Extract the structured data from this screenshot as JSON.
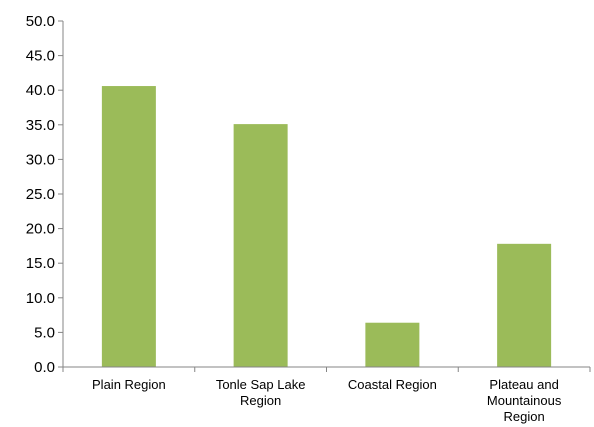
{
  "chart_data": {
    "type": "bar",
    "title": "",
    "xlabel": "",
    "ylabel": "",
    "categories": [
      [
        "Plain Region"
      ],
      [
        "Tonle Sap Lake",
        "Region"
      ],
      [
        "Coastal Region"
      ],
      [
        "Plateau and",
        "Mountainous",
        "Region"
      ]
    ],
    "values": [
      40.6,
      35.1,
      6.4,
      17.8
    ],
    "ylim": [
      0,
      50
    ],
    "yticks": [
      "0.0",
      "5.0",
      "10.0",
      "15.0",
      "20.0",
      "25.0",
      "30.0",
      "35.0",
      "40.0",
      "45.0",
      "50.0"
    ],
    "grid": false,
    "legend": "none",
    "bar_color": "#9BBB59",
    "axis_color": "#858585"
  }
}
